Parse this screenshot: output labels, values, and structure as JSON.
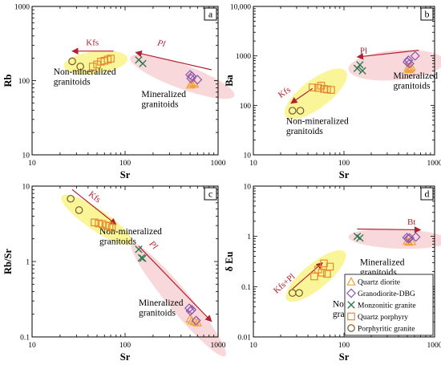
{
  "chart_data": [
    {
      "panel_label": "a",
      "type": "scatter",
      "xlabel": "Sr",
      "ylabel": "Rb",
      "xscale": "log",
      "yscale": "log",
      "xlim": [
        10,
        1000
      ],
      "ylim": [
        10,
        1000
      ],
      "xticks": [
        "10",
        "100",
        "1000"
      ],
      "yticks": [
        "10",
        "100",
        "1000"
      ],
      "groups": [
        {
          "label": "Non-mineralized granitoids",
          "color": "#fbf59a",
          "label_pos": [
            17,
            120
          ]
        },
        {
          "label": "Mineralized granitoids",
          "color": "#f8d8da",
          "label_pos": [
            150,
            60
          ]
        }
      ],
      "trends": [
        {
          "label": "Kfs",
          "from": [
            75,
            250
          ],
          "to": [
            27,
            250
          ],
          "label_at": [
            38,
            300
          ],
          "italic": false
        },
        {
          "label": "Pl",
          "from": [
            850,
            140
          ],
          "to": [
            130,
            240
          ],
          "label_at": [
            220,
            300
          ],
          "italic": true
        }
      ],
      "series": [
        {
          "name": "Quartz diorite",
          "points": [
            [
              505,
              88
            ],
            [
              520,
              92
            ],
            [
              548,
              95
            ],
            [
              560,
              90
            ]
          ]
        },
        {
          "name": "Granodiorite-DBG",
          "points": [
            [
              500,
              120
            ],
            [
              512,
              107
            ],
            [
              522,
              115
            ],
            [
              600,
              103
            ]
          ]
        },
        {
          "name": "Monzonitic granite",
          "points": [
            [
              140,
              190
            ],
            [
              155,
              170
            ]
          ]
        },
        {
          "name": "Quartz porphyry",
          "points": [
            [
              45,
              155
            ],
            [
              50,
              165
            ],
            [
              55,
              180
            ],
            [
              60,
              185
            ],
            [
              65,
              192
            ],
            [
              70,
              198
            ]
          ]
        },
        {
          "name": "Porphyritic granite",
          "points": [
            [
              27,
              182
            ],
            [
              33,
              155
            ]
          ]
        }
      ]
    },
    {
      "panel_label": "b",
      "type": "scatter",
      "xlabel": "Sr",
      "ylabel": "Ba",
      "xscale": "log",
      "yscale": "log",
      "xlim": [
        10,
        1000
      ],
      "ylim": [
        10,
        10000
      ],
      "xticks": [
        "10",
        "100",
        "1000"
      ],
      "yticks": [
        "10",
        "100",
        "1000",
        "10,000"
      ],
      "groups": [
        {
          "label": "Non-mineralized granitoids",
          "color": "#fbf59a",
          "label_pos": [
            23,
            42
          ]
        },
        {
          "label": "Mineralized granitoids",
          "color": "#f8d8da",
          "label_pos": [
            350,
            350
          ]
        }
      ],
      "trends": [
        {
          "label": "Kfs",
          "from": [
            45,
            220
          ],
          "to": [
            26,
            110
          ],
          "label_at": [
            20,
            140
          ],
          "italic": false
        },
        {
          "label": "Pl",
          "from": [
            670,
            1300
          ],
          "to": [
            140,
            950
          ],
          "label_at": [
            150,
            1120
          ],
          "italic": false
        }
      ],
      "series": [
        {
          "name": "Quartz diorite",
          "points": [
            [
              510,
              580
            ],
            [
              520,
              540
            ],
            [
              540,
              560
            ],
            [
              555,
              600
            ]
          ]
        },
        {
          "name": "Granodiorite-DBG",
          "points": [
            [
              500,
              750
            ],
            [
              515,
              820
            ],
            [
              530,
              700
            ],
            [
              610,
              1000
            ]
          ]
        },
        {
          "name": "Monzonitic granite",
          "points": [
            [
              140,
              560
            ],
            [
              150,
              660
            ],
            [
              160,
              500
            ]
          ]
        },
        {
          "name": "Quartz porphyry",
          "points": [
            [
              45,
              230
            ],
            [
              52,
              225
            ],
            [
              56,
              250
            ],
            [
              60,
              215
            ],
            [
              65,
              210
            ],
            [
              72,
              205
            ]
          ]
        },
        {
          "name": "Porphyritic granite",
          "points": [
            [
              27,
              78
            ],
            [
              33,
              78
            ]
          ]
        }
      ]
    },
    {
      "panel_label": "c",
      "type": "scatter",
      "xlabel": "Sr",
      "ylabel": "Rb/Sr",
      "xscale": "log",
      "yscale": "log",
      "xlim": [
        10,
        1000
      ],
      "ylim": [
        0.1,
        10
      ],
      "xticks": [
        "10",
        "100",
        "1000"
      ],
      "yticks": [
        "0.1",
        "1",
        "10"
      ],
      "groups": [
        {
          "label": "Non-mineralized granitoids",
          "color": "#fbf59a",
          "label_pos": [
            53,
            2.3
          ]
        },
        {
          "label": "Mineralized granitoids",
          "color": "#f8d8da",
          "label_pos": [
            140,
            0.26
          ]
        }
      ],
      "trends": [
        {
          "label": "Kfs",
          "from": [
            27,
            9
          ],
          "to": [
            80,
            3.1
          ],
          "label_at": [
            40,
            7.6
          ],
          "italic": false
        },
        {
          "label": "Pl",
          "from": [
            140,
            1.6
          ],
          "to": [
            850,
            0.16
          ],
          "label_at": [
            180,
            1.7
          ],
          "italic": true
        }
      ],
      "series": [
        {
          "name": "Quartz diorite",
          "points": [
            [
              500,
              0.175
            ],
            [
              520,
              0.165
            ],
            [
              560,
              0.16
            ],
            [
              600,
              0.155
            ]
          ]
        },
        {
          "name": "Granodiorite-DBG",
          "points": [
            [
              490,
              0.24
            ],
            [
              505,
              0.22
            ],
            [
              520,
              0.23
            ],
            [
              580,
              0.165
            ]
          ]
        },
        {
          "name": "Monzonitic granite",
          "points": [
            [
              140,
              1.45
            ],
            [
              150,
              1.12
            ],
            [
              155,
              1.1
            ]
          ]
        },
        {
          "name": "Quartz porphyry",
          "points": [
            [
              47,
              3.3
            ],
            [
              52,
              3.2
            ],
            [
              57,
              3.15
            ],
            [
              63,
              3.0
            ],
            [
              68,
              2.95
            ],
            [
              72,
              2.8
            ]
          ]
        },
        {
          "name": "Porphyritic granite",
          "points": [
            [
              26,
              6.8
            ],
            [
              32,
              4.8
            ]
          ]
        }
      ]
    },
    {
      "panel_label": "d",
      "type": "scatter",
      "xlabel": "Sr",
      "ylabel": "δ Eu",
      "xscale": "log",
      "yscale": "log",
      "xlim": [
        10,
        1000
      ],
      "ylim": [
        0.01,
        10
      ],
      "xticks": [
        "10",
        "100",
        "1000"
      ],
      "yticks": [
        "0.01",
        "0.1",
        "1",
        "10"
      ],
      "groups": [
        {
          "label": "Non-mineralized granitoids",
          "color": "#fbf59a",
          "label_pos": [
            75,
            0.04
          ]
        },
        {
          "label": "Mineralized granitoids",
          "color": "#f8d8da",
          "label_pos": [
            150,
            0.27
          ]
        }
      ],
      "trends": [
        {
          "label": "Kfs+Pl",
          "from": [
            27,
            0.09
          ],
          "to": [
            58,
            0.3
          ],
          "label_at": [
            18,
            0.072
          ],
          "italic": false
        },
        {
          "label": "Bt",
          "from": [
            140,
            1.4
          ],
          "to": [
            700,
            1.35
          ],
          "label_at": [
            500,
            1.7
          ],
          "italic": false
        }
      ],
      "series": [
        {
          "name": "Quartz diorite",
          "points": [
            [
              500,
              0.82
            ],
            [
              520,
              0.78
            ],
            [
              560,
              0.8
            ]
          ]
        },
        {
          "name": "Granodiorite-DBG",
          "points": [
            [
              495,
              0.95
            ],
            [
              512,
              0.9
            ],
            [
              530,
              0.93
            ],
            [
              620,
              0.97
            ]
          ]
        },
        {
          "name": "Monzonitic granite",
          "points": [
            [
              140,
              1.0
            ],
            [
              150,
              0.93
            ]
          ]
        },
        {
          "name": "Quartz porphyry",
          "points": [
            [
              47,
              0.16
            ],
            [
              52,
              0.22
            ],
            [
              57,
              0.19
            ],
            [
              60,
              0.29
            ],
            [
              65,
              0.18
            ],
            [
              70,
              0.25
            ]
          ]
        },
        {
          "name": "Porphyritic granite",
          "points": [
            [
              27,
              0.075
            ],
            [
              32,
              0.075
            ]
          ]
        }
      ]
    }
  ],
  "legend": {
    "placement": "bottom-right of panel d",
    "items": [
      {
        "label": "Quartz diorite",
        "marker": "triangle",
        "color": "#f2a13a"
      },
      {
        "label": "Granodiorite-DBG",
        "marker": "diamond",
        "color": "#8b56b2"
      },
      {
        "label": "Monzonitic granite",
        "marker": "cross",
        "color": "#2e7a52"
      },
      {
        "label": "Quartz porphyry",
        "marker": "square",
        "color": "#e8892e"
      },
      {
        "label": "Porphyritic granite",
        "marker": "circle",
        "color": "#735a2a"
      }
    ]
  },
  "colors": {
    "trend_arrow": "#b22030",
    "axis": "#000000"
  }
}
